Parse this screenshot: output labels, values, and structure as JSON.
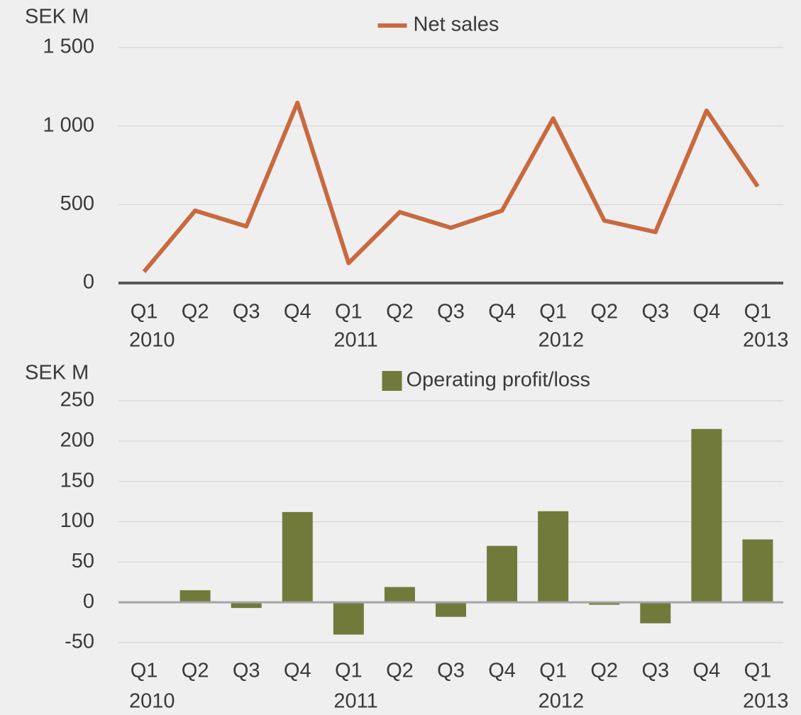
{
  "chart_data": [
    {
      "type": "line",
      "y_label": "SEK M",
      "categories": [
        "Q1",
        "Q2",
        "Q3",
        "Q4",
        "Q1",
        "Q2",
        "Q3",
        "Q4",
        "Q1",
        "Q2",
        "Q3",
        "Q4",
        "Q1"
      ],
      "years": [
        "2010",
        null,
        null,
        null,
        "2011",
        null,
        null,
        null,
        "2012",
        null,
        null,
        null,
        "2013"
      ],
      "series": [
        {
          "name": "Net sales",
          "color": "#c9693f",
          "values": [
            72,
            461,
            361,
            1148,
            127,
            452,
            352,
            461,
            1048,
            398,
            325,
            1098,
            615
          ]
        }
      ],
      "ylim": [
        0,
        1500
      ],
      "yticks": [
        0,
        500,
        {
          "value": 1000,
          "label": "1 000"
        },
        {
          "value": 1500,
          "label": "1 500"
        }
      ],
      "grid": true,
      "legend": "top"
    },
    {
      "type": "bar",
      "y_label": "SEK M",
      "categories": [
        "Q1",
        "Q2",
        "Q3",
        "Q4",
        "Q1",
        "Q2",
        "Q3",
        "Q4",
        "Q1",
        "Q2",
        "Q3",
        "Q4",
        "Q1"
      ],
      "years": [
        "2010",
        null,
        null,
        null,
        "2011",
        null,
        null,
        null,
        "2012",
        null,
        null,
        null,
        "2013"
      ],
      "series": [
        {
          "name": "Operating profit/loss",
          "color": "#717a3b",
          "values": [
            0,
            15,
            -7,
            112,
            -40,
            19,
            -18,
            70,
            113,
            -3,
            -26,
            215,
            78
          ]
        }
      ],
      "ylim": [
        -50,
        250
      ],
      "yticks": [
        -50,
        0,
        50,
        100,
        150,
        200,
        250
      ],
      "grid": true,
      "legend": "top"
    }
  ]
}
